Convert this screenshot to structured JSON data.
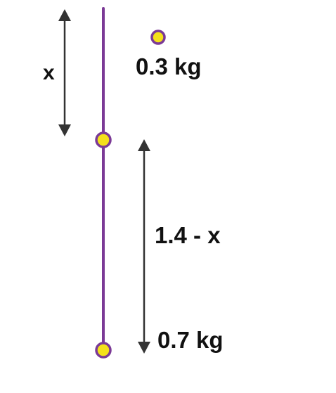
{
  "labels": {
    "upper_length": "x",
    "upper_mass": "0.3 kg",
    "lower_length": "1.4 - x",
    "lower_mass": "0.7 kg"
  },
  "colors": {
    "rod": "#7b3a96",
    "bead_fill": "#f4e11a",
    "bead_stroke": "#7b3a96",
    "arrow": "#333333",
    "text": "#111111"
  }
}
